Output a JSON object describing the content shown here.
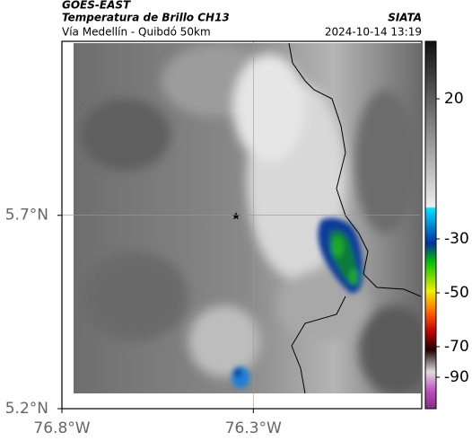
{
  "header": {
    "title": "GOES-EAST",
    "subtitle": "Temperatura de Brillo CH13",
    "source": "SIATA",
    "location": "Vía Medellín - Quibdó 50km",
    "datetime": "2024-10-14 13:19"
  },
  "map": {
    "xlim": [
      -76.8,
      -75.86
    ],
    "ylim": [
      5.2,
      6.15
    ],
    "xticks": [
      {
        "value": -76.8,
        "label": "76.8°W"
      },
      {
        "value": -76.3,
        "label": "76.3°W"
      }
    ],
    "yticks": [
      {
        "value": 5.7,
        "label": "5.7°N"
      },
      {
        "value": 5.2,
        "label": "5.2°N"
      }
    ]
  },
  "colorbar": {
    "ticks": [
      20,
      -30,
      -50,
      -70,
      -90
    ]
  }
}
